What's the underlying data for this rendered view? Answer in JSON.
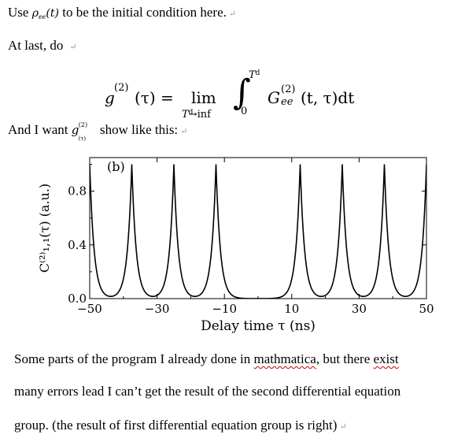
{
  "line1": {
    "before": "Use",
    "symbol": "ρ",
    "symbol_sub": "ee",
    "symbol_arg": "(t)",
    "after": "to be the initial condition here."
  },
  "line2": {
    "text": "At last, do"
  },
  "equation": {
    "lhs": "g",
    "lhs_sup": "(2)",
    "lhs_arg": "(τ) =",
    "lim": "lim",
    "lim_sub": "T",
    "lim_sub_sub": "d",
    "lim_arrow": "→inf",
    "integral": "∫",
    "upper": "T",
    "upper_sub": "d",
    "lower": "0",
    "integrand": "G",
    "integrand_sup": "(2)",
    "integrand_sub": "ee",
    "integrand_arg": "(t, τ)dt"
  },
  "line4": {
    "before": "And I want",
    "symbol": "g",
    "symbol_sup": "(2)",
    "symbol_sub": "(τ)",
    "after": "show like this:"
  },
  "paragraph_marker": "↵",
  "chart_data": {
    "type": "line",
    "panel_label": "(b)",
    "xlabel": "Delay time τ (ns)",
    "ylabel": "C⁽²⁾₁,₁(τ) (a.u.)",
    "xlim": [
      -50,
      50
    ],
    "ylim": [
      0,
      1.05
    ],
    "xticks": [
      -50,
      -30,
      -10,
      10,
      30,
      50
    ],
    "xtick_labels": [
      "−50",
      "−30",
      "−10",
      "10",
      "30",
      "50"
    ],
    "yticks": [
      0.0,
      0.4,
      0.8
    ],
    "ytick_labels": [
      "0.0",
      "0.4",
      "0.8"
    ],
    "peak_centers": [
      -50,
      -37.5,
      -25,
      -12.5,
      12.5,
      25,
      37.5,
      50
    ],
    "peak_height": 1.0,
    "peak_decay_ns": 1.3,
    "line_color": "#000000",
    "grid": false
  },
  "para1": {
    "before": "Some parts of the program I already done in ",
    "underlined": "mathmatica",
    "mid": ", but there ",
    "underlined2": "exist"
  },
  "para2": {
    "text": "many errors lead I can’t get the result of the second differential equation"
  },
  "para3": {
    "text": "group. (the result of first differential equation group is right)"
  }
}
